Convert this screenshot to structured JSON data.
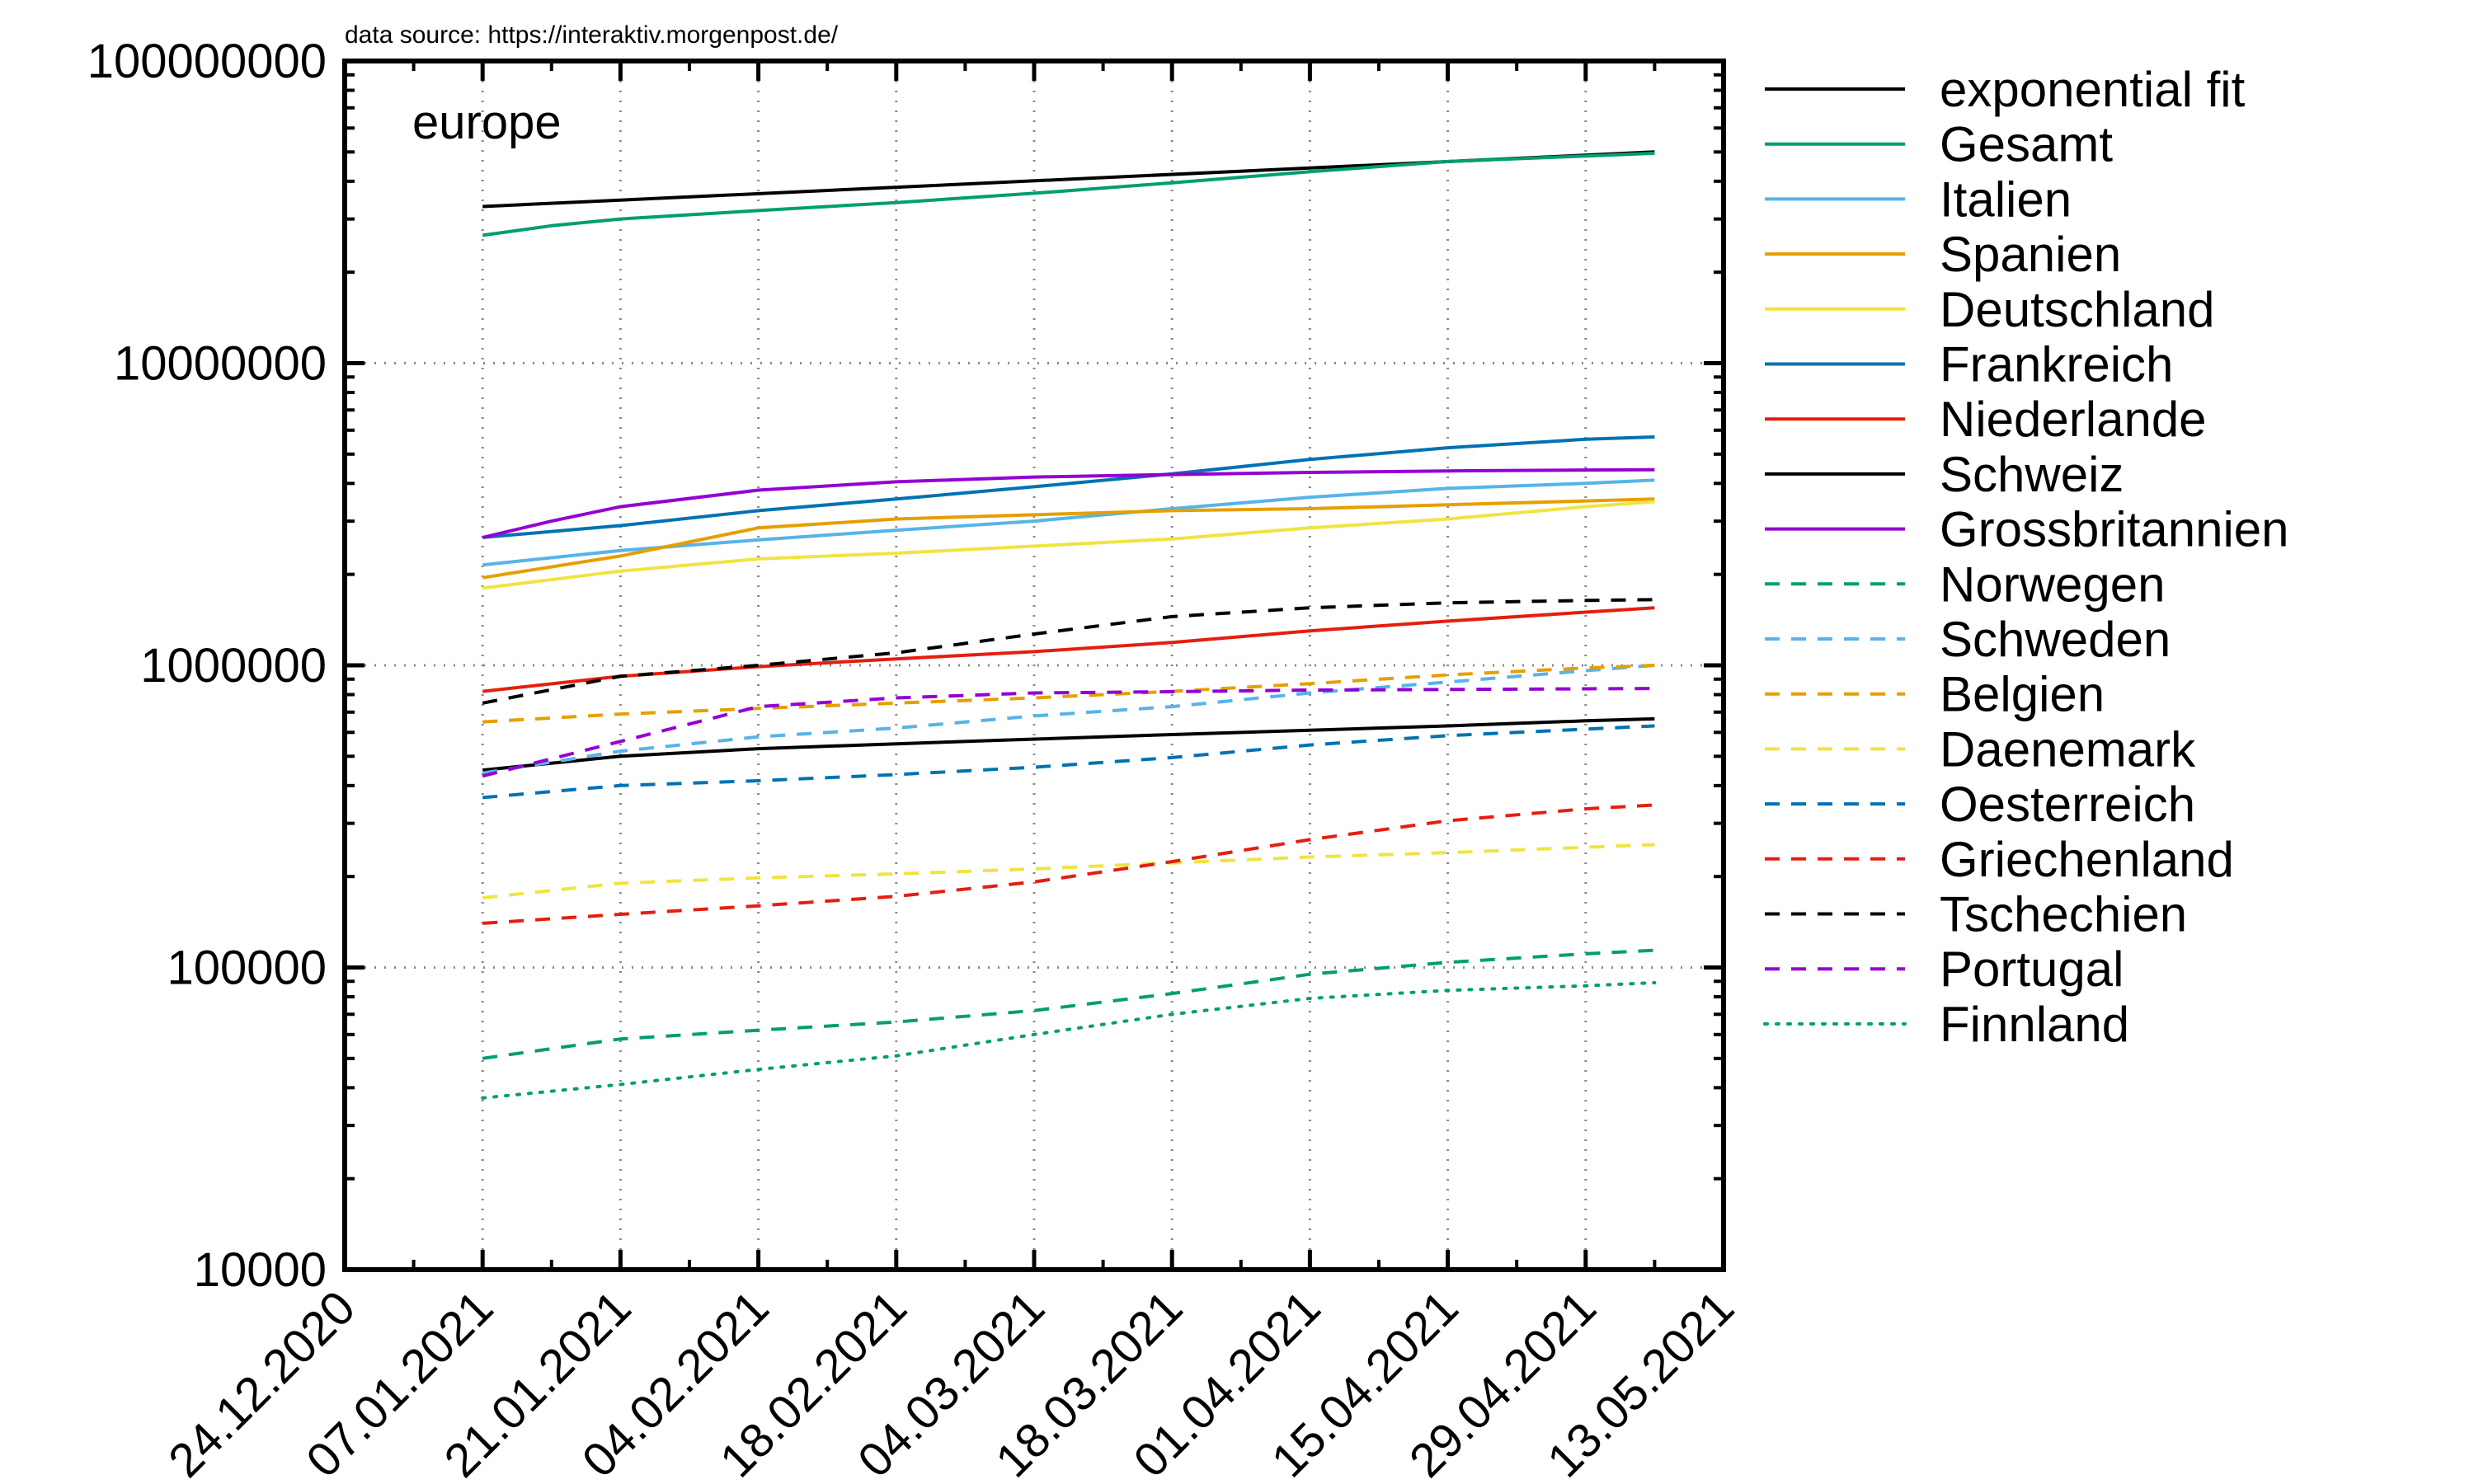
{
  "source_note": "data source: https://interaktiv.morgenpost.de/",
  "chart_data": {
    "type": "line",
    "title": "europe",
    "xlabel": "",
    "ylabel": "",
    "x_axis": {
      "kind": "date",
      "range": [
        "2020-12-24",
        "2021-05-13"
      ],
      "tick_labels": [
        "24.12.2020",
        "07.01.2021",
        "21.01.2021",
        "04.02.2021",
        "18.02.2021",
        "04.03.2021",
        "18.03.2021",
        "01.04.2021",
        "15.04.2021",
        "29.04.2021",
        "13.05.2021"
      ]
    },
    "y_axis": {
      "scale": "log",
      "range": [
        10000,
        100000000
      ],
      "tick_labels": [
        "10000",
        "100000",
        "1000000",
        "10000000",
        "100000000"
      ]
    },
    "grid": true,
    "legend_position": "outside-right",
    "series": [
      {
        "name": "exponential fit",
        "color": "#000000",
        "dash": "solid",
        "points": [
          [
            "2021-01-07",
            33000000
          ],
          [
            "2021-05-06",
            50000000
          ]
        ]
      },
      {
        "name": "Gesamt",
        "color": "#009e73",
        "dash": "solid",
        "points": [
          [
            "2021-01-07",
            26500000
          ],
          [
            "2021-01-14",
            28500000
          ],
          [
            "2021-01-21",
            30000000
          ],
          [
            "2021-02-04",
            32000000
          ],
          [
            "2021-02-18",
            34000000
          ],
          [
            "2021-03-04",
            36500000
          ],
          [
            "2021-03-18",
            39500000
          ],
          [
            "2021-04-01",
            43000000
          ],
          [
            "2021-04-15",
            46500000
          ],
          [
            "2021-04-29",
            48500000
          ],
          [
            "2021-05-06",
            49500000
          ]
        ]
      },
      {
        "name": "Italien",
        "color": "#56b4e9",
        "dash": "solid",
        "points": [
          [
            "2021-01-07",
            2150000
          ],
          [
            "2021-01-21",
            2400000
          ],
          [
            "2021-02-04",
            2600000
          ],
          [
            "2021-02-18",
            2800000
          ],
          [
            "2021-03-04",
            3000000
          ],
          [
            "2021-03-18",
            3300000
          ],
          [
            "2021-04-01",
            3600000
          ],
          [
            "2021-04-15",
            3850000
          ],
          [
            "2021-04-29",
            4000000
          ],
          [
            "2021-05-06",
            4100000
          ]
        ]
      },
      {
        "name": "Spanien",
        "color": "#e69f00",
        "dash": "solid",
        "points": [
          [
            "2021-01-07",
            1950000
          ],
          [
            "2021-01-21",
            2300000
          ],
          [
            "2021-02-04",
            2850000
          ],
          [
            "2021-02-18",
            3050000
          ],
          [
            "2021-03-04",
            3150000
          ],
          [
            "2021-03-18",
            3250000
          ],
          [
            "2021-04-01",
            3300000
          ],
          [
            "2021-04-15",
            3400000
          ],
          [
            "2021-04-29",
            3500000
          ],
          [
            "2021-05-06",
            3550000
          ]
        ]
      },
      {
        "name": "Deutschland",
        "color": "#f0e442",
        "dash": "solid",
        "points": [
          [
            "2021-01-07",
            1800000
          ],
          [
            "2021-01-21",
            2050000
          ],
          [
            "2021-02-04",
            2250000
          ],
          [
            "2021-02-18",
            2350000
          ],
          [
            "2021-03-04",
            2480000
          ],
          [
            "2021-03-18",
            2620000
          ],
          [
            "2021-04-01",
            2850000
          ],
          [
            "2021-04-15",
            3050000
          ],
          [
            "2021-04-29",
            3350000
          ],
          [
            "2021-05-06",
            3480000
          ]
        ]
      },
      {
        "name": "Frankreich",
        "color": "#0072b2",
        "dash": "solid",
        "points": [
          [
            "2021-01-07",
            2650000
          ],
          [
            "2021-01-21",
            2900000
          ],
          [
            "2021-02-04",
            3250000
          ],
          [
            "2021-02-18",
            3550000
          ],
          [
            "2021-03-04",
            3900000
          ],
          [
            "2021-03-18",
            4300000
          ],
          [
            "2021-04-01",
            4800000
          ],
          [
            "2021-04-15",
            5250000
          ],
          [
            "2021-04-29",
            5600000
          ],
          [
            "2021-05-06",
            5700000
          ]
        ]
      },
      {
        "name": "Niederlande",
        "color": "#e51e10",
        "dash": "solid",
        "points": [
          [
            "2021-01-07",
            820000
          ],
          [
            "2021-01-21",
            920000
          ],
          [
            "2021-02-04",
            990000
          ],
          [
            "2021-02-18",
            1050000
          ],
          [
            "2021-03-04",
            1110000
          ],
          [
            "2021-03-18",
            1190000
          ],
          [
            "2021-04-01",
            1300000
          ],
          [
            "2021-04-15",
            1400000
          ],
          [
            "2021-04-29",
            1500000
          ],
          [
            "2021-05-06",
            1550000
          ]
        ]
      },
      {
        "name": "Schweiz",
        "color": "#000000",
        "dash": "solid",
        "points": [
          [
            "2021-01-07",
            450000
          ],
          [
            "2021-01-21",
            500000
          ],
          [
            "2021-02-04",
            530000
          ],
          [
            "2021-02-18",
            550000
          ],
          [
            "2021-03-04",
            570000
          ],
          [
            "2021-03-18",
            590000
          ],
          [
            "2021-04-01",
            610000
          ],
          [
            "2021-04-15",
            630000
          ],
          [
            "2021-04-29",
            655000
          ],
          [
            "2021-05-06",
            665000
          ]
        ]
      },
      {
        "name": "Grossbritannien",
        "color": "#9400d3",
        "dash": "solid",
        "points": [
          [
            "2021-01-07",
            2650000
          ],
          [
            "2021-01-14",
            3000000
          ],
          [
            "2021-01-21",
            3350000
          ],
          [
            "2021-02-04",
            3800000
          ],
          [
            "2021-02-18",
            4050000
          ],
          [
            "2021-03-04",
            4200000
          ],
          [
            "2021-03-18",
            4280000
          ],
          [
            "2021-04-01",
            4350000
          ],
          [
            "2021-04-15",
            4400000
          ],
          [
            "2021-04-29",
            4430000
          ],
          [
            "2021-05-06",
            4440000
          ]
        ]
      },
      {
        "name": "Norwegen",
        "color": "#009e73",
        "dash": "dashed",
        "points": [
          [
            "2021-01-07",
            50000
          ],
          [
            "2021-01-21",
            58000
          ],
          [
            "2021-02-04",
            62000
          ],
          [
            "2021-02-18",
            66000
          ],
          [
            "2021-03-04",
            72000
          ],
          [
            "2021-03-18",
            82000
          ],
          [
            "2021-04-01",
            95000
          ],
          [
            "2021-04-15",
            104000
          ],
          [
            "2021-04-29",
            111000
          ],
          [
            "2021-05-06",
            114000
          ]
        ]
      },
      {
        "name": "Schweden",
        "color": "#56b4e9",
        "dash": "dashed",
        "points": [
          [
            "2021-01-07",
            440000
          ],
          [
            "2021-01-21",
            520000
          ],
          [
            "2021-02-04",
            580000
          ],
          [
            "2021-02-18",
            620000
          ],
          [
            "2021-03-04",
            680000
          ],
          [
            "2021-03-18",
            730000
          ],
          [
            "2021-04-01",
            810000
          ],
          [
            "2021-04-15",
            880000
          ],
          [
            "2021-04-29",
            960000
          ],
          [
            "2021-05-06",
            1000000
          ]
        ]
      },
      {
        "name": "Belgien",
        "color": "#e69f00",
        "dash": "dashed",
        "points": [
          [
            "2021-01-07",
            650000
          ],
          [
            "2021-01-21",
            690000
          ],
          [
            "2021-02-04",
            720000
          ],
          [
            "2021-02-18",
            750000
          ],
          [
            "2021-03-04",
            780000
          ],
          [
            "2021-03-18",
            820000
          ],
          [
            "2021-04-01",
            870000
          ],
          [
            "2021-04-15",
            930000
          ],
          [
            "2021-04-29",
            980000
          ],
          [
            "2021-05-06",
            1000000
          ]
        ]
      },
      {
        "name": "Daenemark",
        "color": "#f0e442",
        "dash": "dashed",
        "points": [
          [
            "2021-01-07",
            170000
          ],
          [
            "2021-01-21",
            190000
          ],
          [
            "2021-02-04",
            198000
          ],
          [
            "2021-02-18",
            204000
          ],
          [
            "2021-03-04",
            212000
          ],
          [
            "2021-03-18",
            222000
          ],
          [
            "2021-04-01",
            232000
          ],
          [
            "2021-04-15",
            240000
          ],
          [
            "2021-04-29",
            250000
          ],
          [
            "2021-05-06",
            255000
          ]
        ]
      },
      {
        "name": "Oesterreich",
        "color": "#0072b2",
        "dash": "dashed",
        "points": [
          [
            "2021-01-07",
            365000
          ],
          [
            "2021-01-21",
            400000
          ],
          [
            "2021-02-04",
            415000
          ],
          [
            "2021-02-18",
            435000
          ],
          [
            "2021-03-04",
            460000
          ],
          [
            "2021-03-18",
            495000
          ],
          [
            "2021-04-01",
            545000
          ],
          [
            "2021-04-15",
            585000
          ],
          [
            "2021-04-29",
            615000
          ],
          [
            "2021-05-06",
            630000
          ]
        ]
      },
      {
        "name": "Griechenland",
        "color": "#e51e10",
        "dash": "dashed",
        "points": [
          [
            "2021-01-07",
            140000
          ],
          [
            "2021-01-21",
            150000
          ],
          [
            "2021-02-04",
            160000
          ],
          [
            "2021-02-18",
            172000
          ],
          [
            "2021-03-04",
            192000
          ],
          [
            "2021-03-18",
            224000
          ],
          [
            "2021-04-01",
            265000
          ],
          [
            "2021-04-15",
            306000
          ],
          [
            "2021-04-29",
            335000
          ],
          [
            "2021-05-06",
            345000
          ]
        ]
      },
      {
        "name": "Tschechien",
        "color": "#000000",
        "dash": "dashed",
        "points": [
          [
            "2021-01-07",
            750000
          ],
          [
            "2021-01-21",
            920000
          ],
          [
            "2021-02-04",
            1000000
          ],
          [
            "2021-02-18",
            1100000
          ],
          [
            "2021-03-04",
            1270000
          ],
          [
            "2021-03-18",
            1450000
          ],
          [
            "2021-04-01",
            1550000
          ],
          [
            "2021-04-15",
            1610000
          ],
          [
            "2021-04-29",
            1640000
          ],
          [
            "2021-05-06",
            1650000
          ]
        ]
      },
      {
        "name": "Portugal",
        "color": "#9400d3",
        "dash": "dashed",
        "points": [
          [
            "2021-01-07",
            430000
          ],
          [
            "2021-01-21",
            560000
          ],
          [
            "2021-02-04",
            730000
          ],
          [
            "2021-02-18",
            780000
          ],
          [
            "2021-03-04",
            810000
          ],
          [
            "2021-03-18",
            818000
          ],
          [
            "2021-04-01",
            828000
          ],
          [
            "2021-04-15",
            832000
          ],
          [
            "2021-04-29",
            836000
          ],
          [
            "2021-05-06",
            838000
          ]
        ]
      },
      {
        "name": "Finnland",
        "color": "#009e73",
        "dash": "dotted",
        "points": [
          [
            "2021-01-07",
            37000
          ],
          [
            "2021-01-21",
            41000
          ],
          [
            "2021-02-04",
            46000
          ],
          [
            "2021-02-18",
            51000
          ],
          [
            "2021-03-04",
            60000
          ],
          [
            "2021-03-18",
            70000
          ],
          [
            "2021-04-01",
            79000
          ],
          [
            "2021-04-15",
            84000
          ],
          [
            "2021-04-29",
            87000
          ],
          [
            "2021-05-06",
            89000
          ]
        ]
      }
    ]
  }
}
